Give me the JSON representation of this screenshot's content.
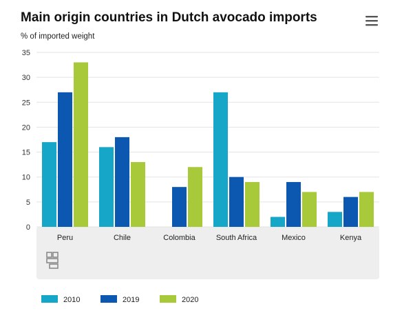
{
  "chart_data": {
    "type": "bar",
    "title": "Main origin countries in Dutch avocado imports",
    "subtitle": "% of imported weight",
    "categories": [
      "Peru",
      "Chile",
      "Colombia",
      "South Africa",
      "Mexico",
      "Kenya"
    ],
    "series": [
      {
        "name": "2010",
        "color": "#16a6c8",
        "values": [
          17,
          16,
          0,
          27,
          2,
          3
        ]
      },
      {
        "name": "2019",
        "color": "#0c58b0",
        "values": [
          27,
          18,
          8,
          10,
          9,
          6
        ]
      },
      {
        "name": "2020",
        "color": "#a8c93a",
        "values": [
          33,
          13,
          12,
          9,
          7,
          7
        ]
      }
    ],
    "ylim": [
      0,
      35
    ],
    "yticks": [
      0,
      5,
      10,
      15,
      20,
      25,
      30,
      35
    ],
    "grid": true,
    "legend": "bottom-left",
    "colors": {
      "plot_bg_band": "#eeeeee",
      "grid": "#e3e3e3"
    }
  },
  "icons": {
    "menu": "hamburger-menu-icon",
    "logo": "cbs-logo-icon"
  }
}
